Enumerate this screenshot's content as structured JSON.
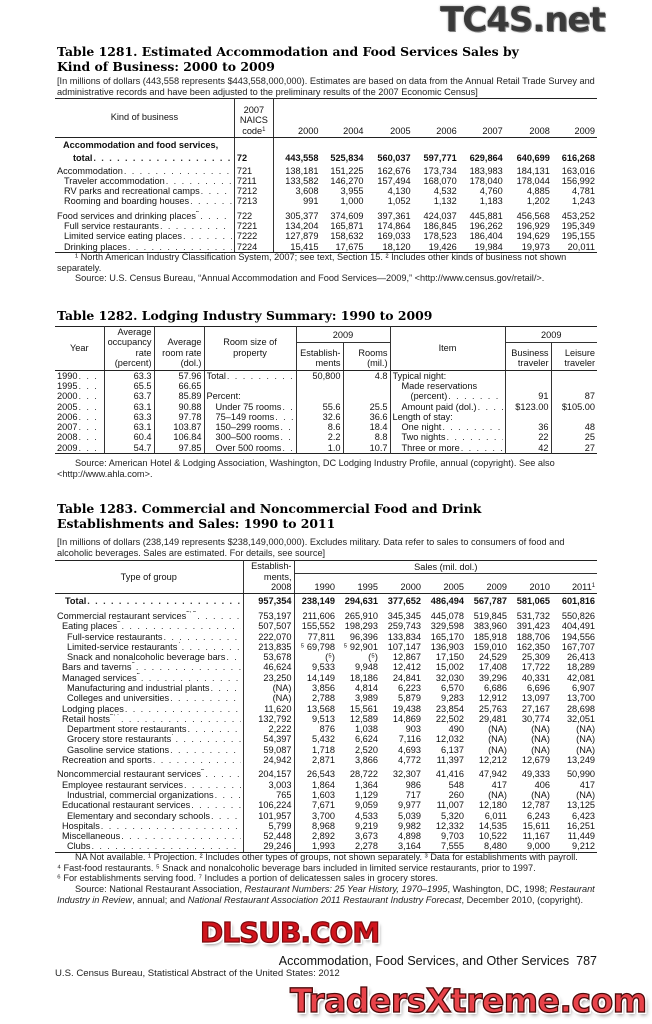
{
  "watermarks": {
    "top": "TC4S.net",
    "middle": "DLSUB.COM",
    "bottom": "TradersXtreme.com"
  },
  "t1281": {
    "title": "Table 1281. Estimated Accommodation and Food Services Sales by Kind of Business: 2000 to 2009",
    "note": "[In millions of dollars (443,558 represents $443,558,000,000). Estimates are based on data from the Annual Retail Trade Survey and administrative records and have been adjusted to the preliminary results of the 2007 Economic Census]",
    "headers": {
      "kind": "Kind of business",
      "naics": "2007 NAICS code",
      "naics_note": "1",
      "years": [
        "2000",
        "2004",
        "2005",
        "2006",
        "2007",
        "2008",
        "2009"
      ]
    },
    "rows": [
      {
        "label": "Accommodation and food services, total",
        "code": "72",
        "bold": true,
        "values": [
          "443,558",
          "525,834",
          "560,037",
          "597,771",
          "629,864",
          "640,699",
          "616,268"
        ]
      },
      {
        "label": "Accommodation",
        "code": "721",
        "indent": 0,
        "values": [
          "138,181",
          "151,225",
          "162,676",
          "173,734",
          "183,983",
          "184,131",
          "163,016"
        ]
      },
      {
        "label": "Traveler accommodation",
        "code": "7211",
        "indent": 1,
        "values": [
          "133,582",
          "146,270",
          "157,494",
          "168,070",
          "178,040",
          "178,044",
          "156,992"
        ]
      },
      {
        "label": "RV parks and recreational camps",
        "code": "7212",
        "indent": 1,
        "values": [
          "3,608",
          "3,955",
          "4,130",
          "4,532",
          "4,760",
          "4,885",
          "4,781"
        ]
      },
      {
        "label": "Rooming and boarding houses",
        "code": "7213",
        "indent": 1,
        "values": [
          "991",
          "1,000",
          "1,052",
          "1,132",
          "1,183",
          "1,202",
          "1,243"
        ]
      },
      {
        "gap": true
      },
      {
        "label": "Food services and drinking places",
        "note": "2",
        "code": "722",
        "indent": 0,
        "values": [
          "305,377",
          "374,609",
          "397,361",
          "424,037",
          "445,881",
          "456,568",
          "453,252"
        ]
      },
      {
        "label": "Full service restaurants",
        "code": "7221",
        "indent": 1,
        "values": [
          "134,204",
          "165,871",
          "174,864",
          "186,845",
          "196,262",
          "196,929",
          "195,349"
        ]
      },
      {
        "label": "Limited service eating places",
        "code": "7222",
        "indent": 1,
        "values": [
          "127,879",
          "158,632",
          "169,033",
          "178,523",
          "186,404",
          "194,629",
          "195,155"
        ]
      },
      {
        "label": "Drinking places",
        "code": "7224",
        "indent": 1,
        "values": [
          "15,415",
          "17,675",
          "18,120",
          "19,426",
          "19,984",
          "19,973",
          "20,011"
        ]
      }
    ],
    "footnote": "¹ North American Industry Classification System, 2007; see text, Section 15. ² Includes other kinds of business not shown separately.",
    "source": "Source: U.S. Census Bureau, “Annual Accommodation and Food Services—2009,” <http://www.census.gov/retail/>."
  },
  "t1282": {
    "title": "Table 1282. Lodging Industry Summary: 1990 to 2009",
    "headers": {
      "year": "Year",
      "occupancy": "Average occupancy rate (percent)",
      "room_rate": "Average room rate (dol.)",
      "room_size": "Room size of property",
      "group2009a": "2009",
      "establishments": "Establish- ments",
      "rooms": "Rooms (mil.)",
      "item": "Item",
      "group2009b": "2009",
      "business": "Business traveler",
      "leisure": "Leisure traveler"
    },
    "rows": [
      {
        "year": "1990",
        "occ": "63.3",
        "rate": "57.96",
        "size": "Total",
        "est": "50,800",
        "rooms": "4.8",
        "item": "Typical night:",
        "bus": "",
        "lei": ""
      },
      {
        "year": "1995",
        "occ": "65.5",
        "rate": "66.65",
        "size": "",
        "est": "",
        "rooms": "",
        "item": "Made reservations",
        "bus": "",
        "lei": ""
      },
      {
        "year": "2000",
        "occ": "63.7",
        "rate": "85.89",
        "size": "Percent:",
        "est": "",
        "rooms": "",
        "item": "(percent)",
        "bus": "91",
        "lei": "87"
      },
      {
        "year": "2005",
        "occ": "63.1",
        "rate": "90.88",
        "size": "Under 75 rooms",
        "est": "55.6",
        "rooms": "25.5",
        "item": "Amount paid (dol.)",
        "bus": "$123.00",
        "lei": "$105.00"
      },
      {
        "year": "2006",
        "occ": "63.3",
        "rate": "97.78",
        "size": "75–149 rooms",
        "est": "32.6",
        "rooms": "36.6",
        "item": "Length of stay:",
        "bus": "",
        "lei": ""
      },
      {
        "year": "2007",
        "occ": "63.1",
        "rate": "103.87",
        "size": "150–299 rooms",
        "est": "8.6",
        "rooms": "18.4",
        "item": "One night",
        "bus": "36",
        "lei": "48"
      },
      {
        "year": "2008",
        "occ": "60.4",
        "rate": "106.84",
        "size": "300–500 rooms",
        "est": "2.2",
        "rooms": "8.8",
        "item": "Two nights",
        "bus": "22",
        "lei": "25"
      },
      {
        "year": "2009",
        "occ": "54.7",
        "rate": "97.85",
        "size": "Over 500 rooms",
        "est": "1.0",
        "rooms": "10.7",
        "item": "Three or more",
        "bus": "42",
        "lei": "27"
      }
    ],
    "source": "Source: American Hotel & Lodging Association, Washington, DC Lodging Industry Profile, annual (copyright). See also <http://www.ahla.com>."
  },
  "t1283": {
    "title": "Table 1283. Commercial and Noncommercial Food and Drink Establishments and Sales: 1990 to 2011",
    "note": "[In millions of dollars (238,149 represents $238,149,000,000). Excludes military. Data refer to sales to consumers of food and alcoholic beverages. Sales are estimated. For details, see source]",
    "headers": {
      "type": "Type of group",
      "establishments": "Establish- ments, 2008",
      "sales": "Sales (mil. dol.)",
      "years": [
        "1990",
        "1995",
        "2000",
        "2005",
        "2009",
        "2010",
        "2011"
      ],
      "year_notes": [
        "",
        "",
        "",
        "",
        "",
        "",
        "1"
      ]
    },
    "rows": [
      {
        "label": "Total",
        "bold": true,
        "est": "957,354",
        "values": [
          "238,149",
          "294,631",
          "377,652",
          "486,494",
          "567,787",
          "581,065",
          "601,816"
        ]
      },
      {
        "gap": true
      },
      {
        "label": "Commercial restaurant services",
        "note": "2, 3",
        "indent": 0,
        "est": "753,197",
        "values": [
          "211,606",
          "265,910",
          "345,345",
          "445,078",
          "519,845",
          "531,732",
          "550,826"
        ]
      },
      {
        "label": "Eating places",
        "note": "2",
        "indent": 1,
        "est": "507,507",
        "values": [
          "155,552",
          "198,293",
          "259,743",
          "329,598",
          "383,960",
          "391,423",
          "404,491"
        ]
      },
      {
        "label": "Full-service restaurants",
        "indent": 2,
        "est": "222,070",
        "values": [
          "77,811",
          "96,396",
          "133,834",
          "165,170",
          "185,918",
          "188,706",
          "194,556"
        ]
      },
      {
        "label": "Limited-service restaurants",
        "note": "4",
        "indent": 2,
        "est": "213,835",
        "values": [
          "⁵ 69,798",
          "⁵ 92,901",
          "107,147",
          "136,903",
          "159,010",
          "162,350",
          "167,707"
        ]
      },
      {
        "label": "Snack and nonalcoholic beverage bars",
        "indent": 2,
        "est": "53,678",
        "values": [
          "(⁵)",
          "(⁵)",
          "12,867",
          "17,150",
          "24,529",
          "25,309",
          "26,413"
        ]
      },
      {
        "label": "Bars and taverns",
        "note": "6",
        "indent": 1,
        "est": "46,624",
        "values": [
          "9,533",
          "9,948",
          "12,412",
          "15,002",
          "17,408",
          "17,722",
          "18,289"
        ]
      },
      {
        "label": "Managed services",
        "note": "2",
        "indent": 1,
        "est": "23,250",
        "values": [
          "14,149",
          "18,186",
          "24,841",
          "32,030",
          "39,296",
          "40,331",
          "42,081"
        ]
      },
      {
        "label": "Manufacturing and industrial plants",
        "indent": 2,
        "est": "(NA)",
        "values": [
          "3,856",
          "4,814",
          "6,223",
          "6,570",
          "6,686",
          "6,696",
          "6,907"
        ]
      },
      {
        "label": "Colleges and universities",
        "indent": 2,
        "est": "(NA)",
        "values": [
          "2,788",
          "3,989",
          "5,879",
          "9,283",
          "12,912",
          "13,097",
          "13,700"
        ]
      },
      {
        "label": "Lodging places",
        "indent": 1,
        "est": "11,620",
        "values": [
          "13,568",
          "15,561",
          "19,438",
          "23,854",
          "25,763",
          "27,167",
          "28,698"
        ]
      },
      {
        "label": "Retail hosts",
        "note": "2, 7",
        "indent": 1,
        "est": "132,792",
        "values": [
          "9,513",
          "12,589",
          "14,869",
          "22,502",
          "29,481",
          "30,774",
          "32,051"
        ]
      },
      {
        "label": "Department store restaurants",
        "indent": 2,
        "est": "2,222",
        "values": [
          "876",
          "1,038",
          "903",
          "490",
          "(NA)",
          "(NA)",
          "(NA)"
        ]
      },
      {
        "label": "Grocery store restaurants",
        "note": "7",
        "indent": 2,
        "est": "54,397",
        "values": [
          "5,432",
          "6,624",
          "7,116",
          "12,032",
          "(NA)",
          "(NA)",
          "(NA)"
        ]
      },
      {
        "label": "Gasoline service stations",
        "indent": 2,
        "est": "59,087",
        "values": [
          "1,718",
          "2,520",
          "4,693",
          "6,137",
          "(NA)",
          "(NA)",
          "(NA)"
        ]
      },
      {
        "label": "Recreation and sports",
        "indent": 1,
        "est": "24,942",
        "values": [
          "2,871",
          "3,866",
          "4,772",
          "11,397",
          "12,212",
          "12,679",
          "13,249"
        ]
      },
      {
        "gap": true
      },
      {
        "label": "Noncommercial restaurant services",
        "note": "2",
        "indent": 0,
        "est": "204,157",
        "values": [
          "26,543",
          "28,722",
          "32,307",
          "41,416",
          "47,942",
          "49,333",
          "50,990"
        ]
      },
      {
        "label": "Employee restaurant services",
        "indent": 1,
        "est": "3,003",
        "values": [
          "1,864",
          "1,364",
          "986",
          "548",
          "417",
          "406",
          "417"
        ]
      },
      {
        "label": "Industrial, commercial organizations",
        "indent": 2,
        "est": "765",
        "values": [
          "1,603",
          "1,129",
          "717",
          "260",
          "(NA)",
          "(NA)",
          "(NA)"
        ]
      },
      {
        "label": "Educational restaurant services",
        "indent": 1,
        "est": "106,224",
        "values": [
          "7,671",
          "9,059",
          "9,977",
          "11,007",
          "12,180",
          "12,787",
          "13,125"
        ]
      },
      {
        "label": "Elementary and secondary schools",
        "indent": 2,
        "est": "101,957",
        "values": [
          "3,700",
          "4,533",
          "5,039",
          "5,320",
          "6,011",
          "6,243",
          "6,423"
        ]
      },
      {
        "label": "Hospitals",
        "indent": 1,
        "est": "5,799",
        "values": [
          "8,968",
          "9,219",
          "9,982",
          "12,332",
          "14,535",
          "15,611",
          "16,251"
        ]
      },
      {
        "label": "Miscellaneous",
        "indent": 1,
        "est": "52,448",
        "values": [
          "2,892",
          "3,673",
          "4,898",
          "9,703",
          "10,522",
          "11,167",
          "11,449"
        ]
      },
      {
        "label": "Clubs",
        "indent": 2,
        "est": "29,246",
        "values": [
          "1,993",
          "2,278",
          "3,164",
          "7,555",
          "8,480",
          "9,000",
          "9,212"
        ]
      }
    ],
    "footnotes": [
      "NA Not available. ¹ Projection. ² Includes other types of groups, not shown separately. ³ Data for establishments with payroll.",
      "⁴ Fast-food restaurants. ⁵ Snack and nonalcoholic beverage bars included in limited service restaurants, prior to 1997.",
      "⁶ For establishments serving food. ⁷ Includes a portion of delicatessen sales in grocery stores."
    ],
    "source_prefix": "Source: National Restaurant Association, ",
    "source_italic1": "Restaurant Numbers: 25 Year History, 1970–1995",
    "source_mid1": ", Washington, DC, 1998; ",
    "source_italic2": "Restaurant Industry in Review",
    "source_mid2": ", annual; and ",
    "source_italic3": "National Restaurant Association 2011 Restaurant Industry Forecast",
    "source_end": ", December 2010, (copyright)."
  },
  "footer": {
    "section": "Accommodation, Food Services, and Other Services",
    "page_number": "787",
    "publication": "U.S. Census Bureau, Statistical Abstract of the United States: 2012"
  }
}
